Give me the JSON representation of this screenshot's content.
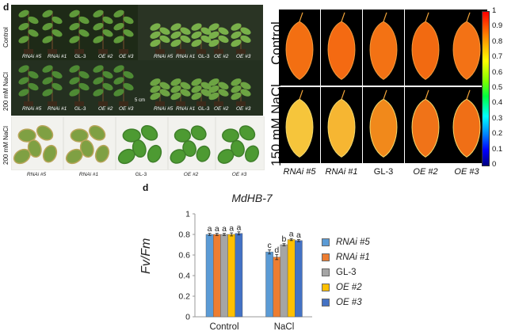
{
  "panel_letters": {
    "left_top": "d",
    "bottom": "d"
  },
  "photo_panel": {
    "rows": [
      {
        "side_label": "Control",
        "labels": [
          "RNAi #5",
          "RNAi #1",
          "GL-3",
          "OE #2",
          "OE #3",
          "RNAi #5",
          "RNAi #1",
          "GL-3",
          "OE #2",
          "OE #3"
        ]
      },
      {
        "side_label": "200 mM NaCl",
        "labels": [
          "RNAi #5",
          "RNAi #1",
          "GL-3",
          "OE #2",
          "OE #3",
          "RNAi #5",
          "RNAi #1",
          "GL-3",
          "OE #2",
          "OE #3"
        ]
      },
      {
        "side_label": "200 mM NaCl",
        "labels": [
          "RNAi #5",
          "RNAi #1",
          "GL-3",
          "OE #2",
          "OE #3"
        ]
      }
    ],
    "scale_bar": "5 cm"
  },
  "leaf_panel": {
    "row_labels": [
      "Control",
      "150 mM NaCl"
    ],
    "column_labels": [
      "RNAi #5",
      "RNAi #1",
      "GL-3",
      "OE #2",
      "OE #3"
    ],
    "colorbar_ticks": [
      "1",
      "0.9",
      "0.8",
      "0.7",
      "0.6",
      "0.5",
      "0.4",
      "0.3",
      "0.2",
      "0.1",
      "0"
    ],
    "leaf_colors": {
      "control": [
        "#f36f12",
        "#f46a12",
        "#f37214",
        "#f26a11",
        "#f37215"
      ],
      "nacl": [
        "#f6c53b",
        "#f6b632",
        "#f1891b",
        "#f07318",
        "#f06f16"
      ]
    }
  },
  "chart_data": {
    "type": "bar",
    "title": "MdHB-7",
    "ylabel": "Fv/Fm",
    "xlabel": "",
    "categories": [
      "Control",
      "NaCl"
    ],
    "ylim": [
      0,
      1
    ],
    "yticks": [
      "0",
      "0.2",
      "0.4",
      "0.6",
      "0.8",
      "1"
    ],
    "grid": false,
    "legend_position": "right",
    "series": [
      {
        "name": "RNAi #5",
        "color": "#5b9bd5",
        "values": [
          0.8,
          0.63
        ],
        "errors": [
          0.01,
          0.02
        ],
        "letters": [
          "a",
          "c"
        ]
      },
      {
        "name": "RNAi #1",
        "color": "#ed7d31",
        "values": [
          0.8,
          0.58
        ],
        "errors": [
          0.01,
          0.025
        ],
        "letters": [
          "a",
          "d"
        ]
      },
      {
        "name": "GL-3",
        "color": "#a5a5a5",
        "values": [
          0.8,
          0.7
        ],
        "errors": [
          0.01,
          0.01
        ],
        "letters": [
          "a",
          "b"
        ]
      },
      {
        "name": "OE #2",
        "color": "#ffc000",
        "values": [
          0.8,
          0.75
        ],
        "errors": [
          0.015,
          0.01
        ],
        "letters": [
          "a",
          "a"
        ]
      },
      {
        "name": "OE #3",
        "color": "#4472c4",
        "values": [
          0.81,
          0.74
        ],
        "errors": [
          0.015,
          0.01
        ],
        "letters": [
          "a",
          "a"
        ]
      }
    ]
  }
}
